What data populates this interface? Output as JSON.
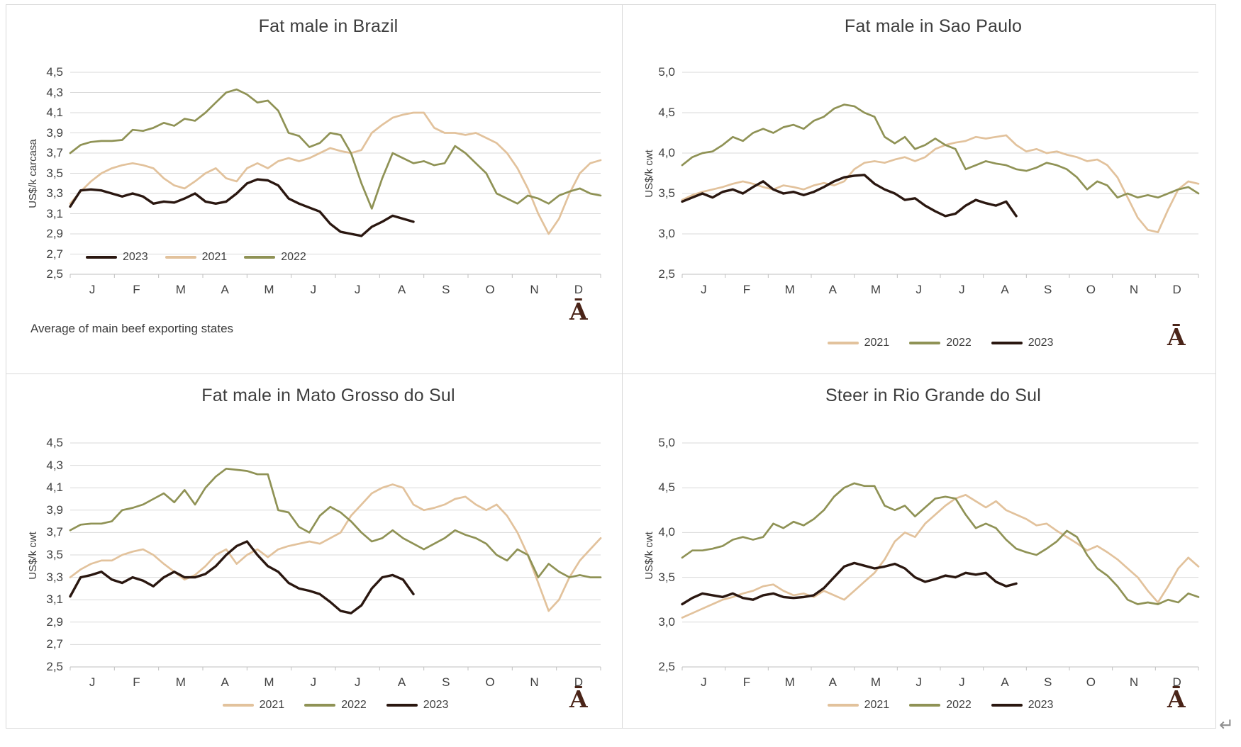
{
  "page": {
    "paragraph_mark": "↵"
  },
  "colors": {
    "s2021": "#e2c29c",
    "s2022": "#8f9255",
    "s2023": "#2a1710",
    "grid": "#dadada",
    "axis": "#bfbfbf",
    "text": "#404040",
    "logo": "#4a2418"
  },
  "months": [
    "J",
    "F",
    "M",
    "A",
    "M",
    "J",
    "J",
    "A",
    "S",
    "O",
    "N",
    "D"
  ],
  "chart_data": [
    {
      "type": "line",
      "title": "Fat male in Brazil",
      "ylabel": "US$/k carcasa",
      "ylim": [
        2.5,
        4.5
      ],
      "ytick_values": [
        2.5,
        2.7,
        2.9,
        3.1,
        3.3,
        3.5,
        3.7,
        3.9,
        4.1,
        4.3,
        4.5
      ],
      "ytick_labels": [
        "2,5",
        "2,7",
        "2,9",
        "3,1",
        "3,3",
        "3,5",
        "3,7",
        "3,9",
        "4,1",
        "4,3",
        "4,5"
      ],
      "xtick_labels": [
        "J",
        "F",
        "M",
        "A",
        "M",
        "J",
        "J",
        "A",
        "S",
        "O",
        "N",
        "D"
      ],
      "x_unit": "week",
      "n_weeks": 52,
      "grid": true,
      "legend_position": "inside-bottom-left",
      "legend": [
        "2023",
        "2021",
        "2022"
      ],
      "footnote": "Average of main beef exporting states",
      "logo": "Ā",
      "series": [
        {
          "name": "2021",
          "color": "#e2c29c",
          "values": [
            3.2,
            3.32,
            3.42,
            3.5,
            3.55,
            3.58,
            3.6,
            3.58,
            3.55,
            3.45,
            3.38,
            3.35,
            3.42,
            3.5,
            3.55,
            3.45,
            3.42,
            3.55,
            3.6,
            3.55,
            3.62,
            3.65,
            3.62,
            3.65,
            3.7,
            3.75,
            3.72,
            3.7,
            3.73,
            3.9,
            3.98,
            4.05,
            4.08,
            4.1,
            4.1,
            3.95,
            3.9,
            3.9,
            3.88,
            3.9,
            3.85,
            3.8,
            3.7,
            3.55,
            3.35,
            3.1,
            2.9,
            3.05,
            3.3,
            3.5,
            3.6,
            3.63
          ]
        },
        {
          "name": "2022",
          "color": "#8f9255",
          "values": [
            3.7,
            3.78,
            3.81,
            3.82,
            3.82,
            3.83,
            3.93,
            3.92,
            3.95,
            4.0,
            3.97,
            4.04,
            4.02,
            4.1,
            4.2,
            4.3,
            4.33,
            4.28,
            4.2,
            4.22,
            4.12,
            3.9,
            3.87,
            3.76,
            3.8,
            3.9,
            3.88,
            3.7,
            3.4,
            3.15,
            3.45,
            3.7,
            3.65,
            3.6,
            3.62,
            3.58,
            3.6,
            3.77,
            3.7,
            3.6,
            3.5,
            3.3,
            3.25,
            3.2,
            3.28,
            3.25,
            3.2,
            3.28,
            3.32,
            3.35,
            3.3,
            3.28
          ]
        },
        {
          "name": "2023",
          "color": "#2a1710",
          "values": [
            3.17,
            3.33,
            3.34,
            3.33,
            3.3,
            3.27,
            3.3,
            3.27,
            3.2,
            3.22,
            3.21,
            3.25,
            3.3,
            3.22,
            3.2,
            3.22,
            3.3,
            3.4,
            3.44,
            3.43,
            3.38,
            3.25,
            3.2,
            3.16,
            3.12,
            3.0,
            2.92,
            2.9,
            2.88,
            2.97,
            3.02,
            3.08,
            3.05,
            3.02
          ]
        }
      ]
    },
    {
      "type": "line",
      "title": "Fat male in Sao Paulo",
      "ylabel": "US$/k cwt",
      "ylim": [
        2.5,
        5.0
      ],
      "ytick_values": [
        2.5,
        3.0,
        3.5,
        4.0,
        4.5,
        5.0
      ],
      "ytick_labels": [
        "2,5",
        "3,0",
        "3,5",
        "4,0",
        "4,5",
        "5,0"
      ],
      "xtick_labels": [
        "J",
        "F",
        "M",
        "A",
        "M",
        "J",
        "J",
        "A",
        "S",
        "O",
        "N",
        "D"
      ],
      "x_unit": "week",
      "n_weeks": 52,
      "grid": true,
      "legend_position": "below",
      "legend": [
        "2021",
        "2022",
        "2023"
      ],
      "footnote": "",
      "logo": "Ā",
      "series": [
        {
          "name": "2021",
          "color": "#e2c29c",
          "values": [
            3.42,
            3.48,
            3.52,
            3.55,
            3.58,
            3.62,
            3.65,
            3.62,
            3.58,
            3.55,
            3.6,
            3.58,
            3.55,
            3.6,
            3.63,
            3.6,
            3.65,
            3.8,
            3.88,
            3.9,
            3.88,
            3.92,
            3.95,
            3.9,
            3.95,
            4.05,
            4.1,
            4.13,
            4.15,
            4.2,
            4.18,
            4.2,
            4.22,
            4.1,
            4.02,
            4.05,
            4.0,
            4.02,
            3.98,
            3.95,
            3.9,
            3.92,
            3.85,
            3.7,
            3.45,
            3.2,
            3.05,
            3.02,
            3.3,
            3.55,
            3.65,
            3.62
          ]
        },
        {
          "name": "2022",
          "color": "#8f9255",
          "values": [
            3.85,
            3.95,
            4.0,
            4.02,
            4.1,
            4.2,
            4.15,
            4.25,
            4.3,
            4.25,
            4.32,
            4.35,
            4.3,
            4.4,
            4.45,
            4.55,
            4.6,
            4.58,
            4.5,
            4.45,
            4.2,
            4.12,
            4.2,
            4.05,
            4.1,
            4.18,
            4.1,
            4.05,
            3.8,
            3.85,
            3.9,
            3.87,
            3.85,
            3.8,
            3.78,
            3.82,
            3.88,
            3.85,
            3.8,
            3.7,
            3.55,
            3.65,
            3.6,
            3.45,
            3.5,
            3.45,
            3.48,
            3.45,
            3.5,
            3.55,
            3.58,
            3.5
          ]
        },
        {
          "name": "2023",
          "color": "#2a1710",
          "values": [
            3.4,
            3.45,
            3.5,
            3.45,
            3.52,
            3.55,
            3.5,
            3.58,
            3.65,
            3.55,
            3.5,
            3.52,
            3.48,
            3.52,
            3.58,
            3.65,
            3.7,
            3.72,
            3.73,
            3.62,
            3.55,
            3.5,
            3.42,
            3.44,
            3.35,
            3.28,
            3.22,
            3.25,
            3.35,
            3.42,
            3.38,
            3.35,
            3.4,
            3.22
          ]
        }
      ]
    },
    {
      "type": "line",
      "title": "Fat male in Mato Grosso do Sul",
      "ylabel": "US$/k cwt",
      "ylim": [
        2.5,
        4.5
      ],
      "ytick_values": [
        2.5,
        2.7,
        2.9,
        3.1,
        3.3,
        3.5,
        3.7,
        3.9,
        4.1,
        4.3,
        4.5
      ],
      "ytick_labels": [
        "2,5",
        "2,7",
        "2,9",
        "3,1",
        "3,3",
        "3,5",
        "3,7",
        "3,9",
        "4,1",
        "4,3",
        "4,5"
      ],
      "xtick_labels": [
        "J",
        "F",
        "M",
        "A",
        "M",
        "J",
        "J",
        "A",
        "S",
        "O",
        "N",
        "D"
      ],
      "x_unit": "week",
      "n_weeks": 52,
      "grid": true,
      "legend_position": "below",
      "legend": [
        "2021",
        "2022",
        "2023"
      ],
      "footnote": "",
      "logo": "Ā",
      "series": [
        {
          "name": "2021",
          "color": "#e2c29c",
          "values": [
            3.3,
            3.37,
            3.42,
            3.45,
            3.45,
            3.5,
            3.53,
            3.55,
            3.5,
            3.42,
            3.35,
            3.28,
            3.32,
            3.4,
            3.5,
            3.55,
            3.42,
            3.5,
            3.55,
            3.48,
            3.55,
            3.58,
            3.6,
            3.62,
            3.6,
            3.65,
            3.7,
            3.85,
            3.95,
            4.05,
            4.1,
            4.13,
            4.1,
            3.95,
            3.9,
            3.92,
            3.95,
            4.0,
            4.02,
            3.95,
            3.9,
            3.95,
            3.85,
            3.7,
            3.5,
            3.25,
            3.0,
            3.1,
            3.3,
            3.45,
            3.55,
            3.65
          ]
        },
        {
          "name": "2022",
          "color": "#8f9255",
          "values": [
            3.72,
            3.77,
            3.78,
            3.78,
            3.8,
            3.9,
            3.92,
            3.95,
            4.0,
            4.05,
            3.97,
            4.08,
            3.95,
            4.1,
            4.2,
            4.27,
            4.26,
            4.25,
            4.22,
            4.22,
            3.9,
            3.88,
            3.75,
            3.7,
            3.85,
            3.93,
            3.88,
            3.8,
            3.7,
            3.62,
            3.65,
            3.72,
            3.65,
            3.6,
            3.55,
            3.6,
            3.65,
            3.72,
            3.68,
            3.65,
            3.6,
            3.5,
            3.45,
            3.55,
            3.5,
            3.3,
            3.42,
            3.35,
            3.3,
            3.32,
            3.3,
            3.3
          ]
        },
        {
          "name": "2023",
          "color": "#2a1710",
          "values": [
            3.13,
            3.3,
            3.32,
            3.35,
            3.28,
            3.25,
            3.3,
            3.27,
            3.22,
            3.3,
            3.35,
            3.3,
            3.3,
            3.33,
            3.4,
            3.5,
            3.58,
            3.62,
            3.5,
            3.4,
            3.35,
            3.25,
            3.2,
            3.18,
            3.15,
            3.08,
            3.0,
            2.98,
            3.05,
            3.2,
            3.3,
            3.32,
            3.28,
            3.15
          ]
        }
      ]
    },
    {
      "type": "line",
      "title": "Steer in Rio Grande do Sul",
      "ylabel": "US$/k cwt",
      "ylim": [
        2.5,
        5.0
      ],
      "ytick_values": [
        2.5,
        3.0,
        3.5,
        4.0,
        4.5,
        5.0
      ],
      "ytick_labels": [
        "2,5",
        "3,0",
        "3,5",
        "4,0",
        "4,5",
        "5,0"
      ],
      "xtick_labels": [
        "J",
        "F",
        "M",
        "A",
        "M",
        "J",
        "J",
        "A",
        "S",
        "O",
        "N",
        "D"
      ],
      "x_unit": "week",
      "n_weeks": 52,
      "grid": true,
      "legend_position": "below",
      "legend": [
        "2021",
        "2022",
        "2023"
      ],
      "footnote": "",
      "logo": "Ā",
      "series": [
        {
          "name": "2021",
          "color": "#e2c29c",
          "values": [
            3.05,
            3.1,
            3.15,
            3.2,
            3.25,
            3.28,
            3.32,
            3.35,
            3.4,
            3.42,
            3.35,
            3.3,
            3.32,
            3.28,
            3.35,
            3.3,
            3.25,
            3.35,
            3.45,
            3.55,
            3.7,
            3.9,
            4.0,
            3.95,
            4.1,
            4.2,
            4.3,
            4.38,
            4.42,
            4.35,
            4.28,
            4.35,
            4.25,
            4.2,
            4.15,
            4.08,
            4.1,
            4.02,
            3.95,
            3.88,
            3.8,
            3.85,
            3.78,
            3.7,
            3.6,
            3.5,
            3.35,
            3.22,
            3.4,
            3.6,
            3.72,
            3.62
          ]
        },
        {
          "name": "2022",
          "color": "#8f9255",
          "values": [
            3.72,
            3.8,
            3.8,
            3.82,
            3.85,
            3.92,
            3.95,
            3.92,
            3.95,
            4.1,
            4.05,
            4.12,
            4.08,
            4.15,
            4.25,
            4.4,
            4.5,
            4.55,
            4.52,
            4.52,
            4.3,
            4.25,
            4.3,
            4.18,
            4.28,
            4.38,
            4.4,
            4.38,
            4.2,
            4.05,
            4.1,
            4.05,
            3.92,
            3.82,
            3.78,
            3.75,
            3.82,
            3.9,
            4.02,
            3.95,
            3.75,
            3.6,
            3.52,
            3.4,
            3.25,
            3.2,
            3.22,
            3.2,
            3.25,
            3.22,
            3.32,
            3.28
          ]
        },
        {
          "name": "2023",
          "color": "#2a1710",
          "values": [
            3.2,
            3.27,
            3.32,
            3.3,
            3.28,
            3.32,
            3.27,
            3.25,
            3.3,
            3.32,
            3.28,
            3.27,
            3.28,
            3.3,
            3.38,
            3.5,
            3.62,
            3.66,
            3.63,
            3.6,
            3.62,
            3.65,
            3.6,
            3.5,
            3.45,
            3.48,
            3.52,
            3.5,
            3.55,
            3.53,
            3.55,
            3.45,
            3.4,
            3.43
          ]
        }
      ]
    }
  ]
}
